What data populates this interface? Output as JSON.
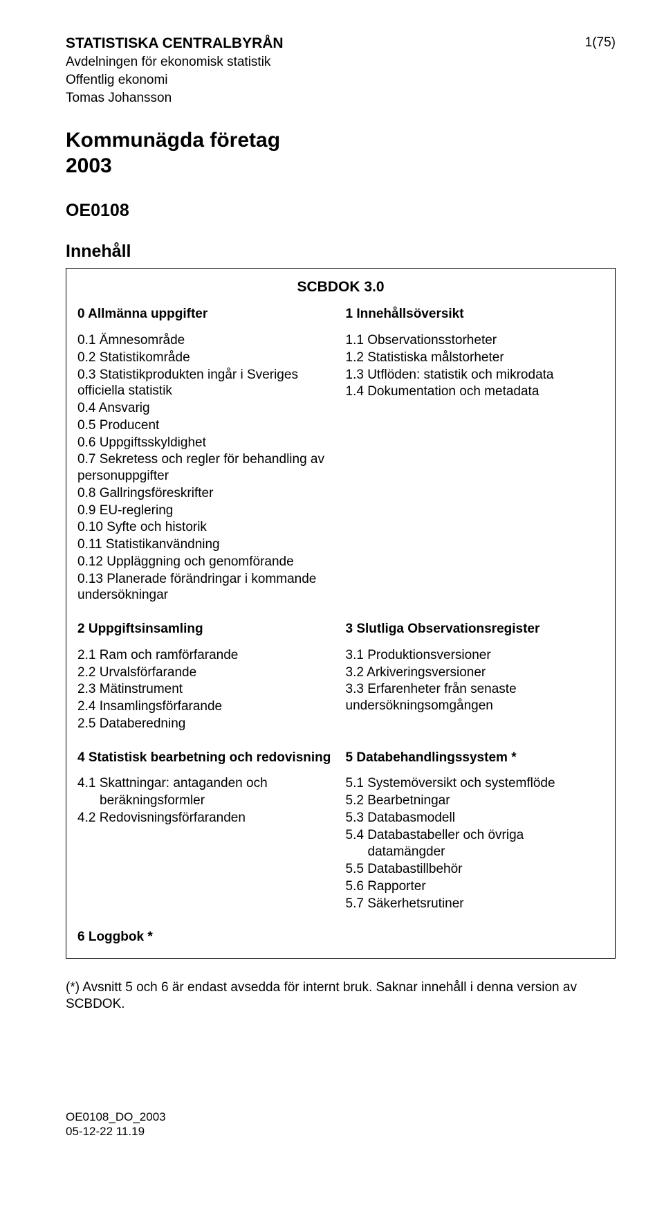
{
  "header": {
    "org": "STATISTISKA CENTRALBYRÅN",
    "line2": "Avdelningen för ekonomisk statistik",
    "line3": "Offentlig ekonomi",
    "line4": "Tomas Johansson",
    "page": "1(75)"
  },
  "title": {
    "main": "Kommunägda företag",
    "year": "2003",
    "code": "OE0108",
    "toc": "Innehåll"
  },
  "box": {
    "scbdok": "SCBDOK 3.0",
    "left": {
      "s0": {
        "head": "0  Allmänna uppgifter",
        "items": [
          "0.1  Ämnesområde",
          "0.2  Statistikområde",
          "0.3  Statistikprodukten ingår i Sveriges officiella statistik",
          "0.4  Ansvarig",
          "0.5  Producent",
          "0.6  Uppgiftsskyldighet",
          "0.7  Sekretess och regler för behandling av personuppgifter",
          "0.8  Gallringsföreskrifter",
          "0.9  EU-reglering",
          "0.10  Syfte och historik",
          "0.11  Statistikanvändning",
          "0.12  Uppläggning och genomförande",
          "0.13  Planerade förändringar i kommande undersökningar"
        ]
      },
      "s2": {
        "head": "2  Uppgiftsinsamling",
        "items": [
          "2.1  Ram och ramförfarande",
          "2.2  Urvalsförfarande",
          "2.3  Mätinstrument",
          "2.4  Insamlingsförfarande",
          "2.5  Databeredning"
        ]
      },
      "s4": {
        "head": "4  Statistisk bearbetning och redovisning",
        "items_a": "4.1  Skattningar: antaganden och",
        "items_a2": "beräkningsformler",
        "items_b": "4.2  Redovisningsförfaranden"
      },
      "s6": {
        "head": "6  Loggbok *"
      }
    },
    "right": {
      "s1": {
        "head": "1  Innehållsöversikt",
        "items": [
          "1.1  Observationsstorheter",
          "1.2  Statistiska målstorheter",
          "1.3  Utflöden: statistik och mikrodata",
          "1.4  Dokumentation och metadata"
        ]
      },
      "s3": {
        "head": "3  Slutliga Observationsregister",
        "items": [
          "3.1  Produktionsversioner",
          "3.2  Arkiveringsversioner",
          "3.3  Erfarenheter från senaste undersökningsomgången"
        ]
      },
      "s5": {
        "head": "5  Databehandlingssystem *",
        "items_a": "5.1  Systemöversikt och systemflöde",
        "items_b": "5.2  Bearbetningar",
        "items_c": "5.3  Databasmodell",
        "items_d": "5.4  Databastabeller och övriga",
        "items_d2": "datamängder",
        "items_e": "5.5  Databastillbehör",
        "items_f": "5.6  Rapporter",
        "items_g": "5.7  Säkerhetsrutiner"
      }
    }
  },
  "footnote": "(*) Avsnitt 5 och 6 är endast avsedda för internt bruk. Saknar innehåll i denna version av SCBDOK.",
  "footer": {
    "l1": "OE0108_DO_2003",
    "l2": "05-12-22 11.19"
  }
}
